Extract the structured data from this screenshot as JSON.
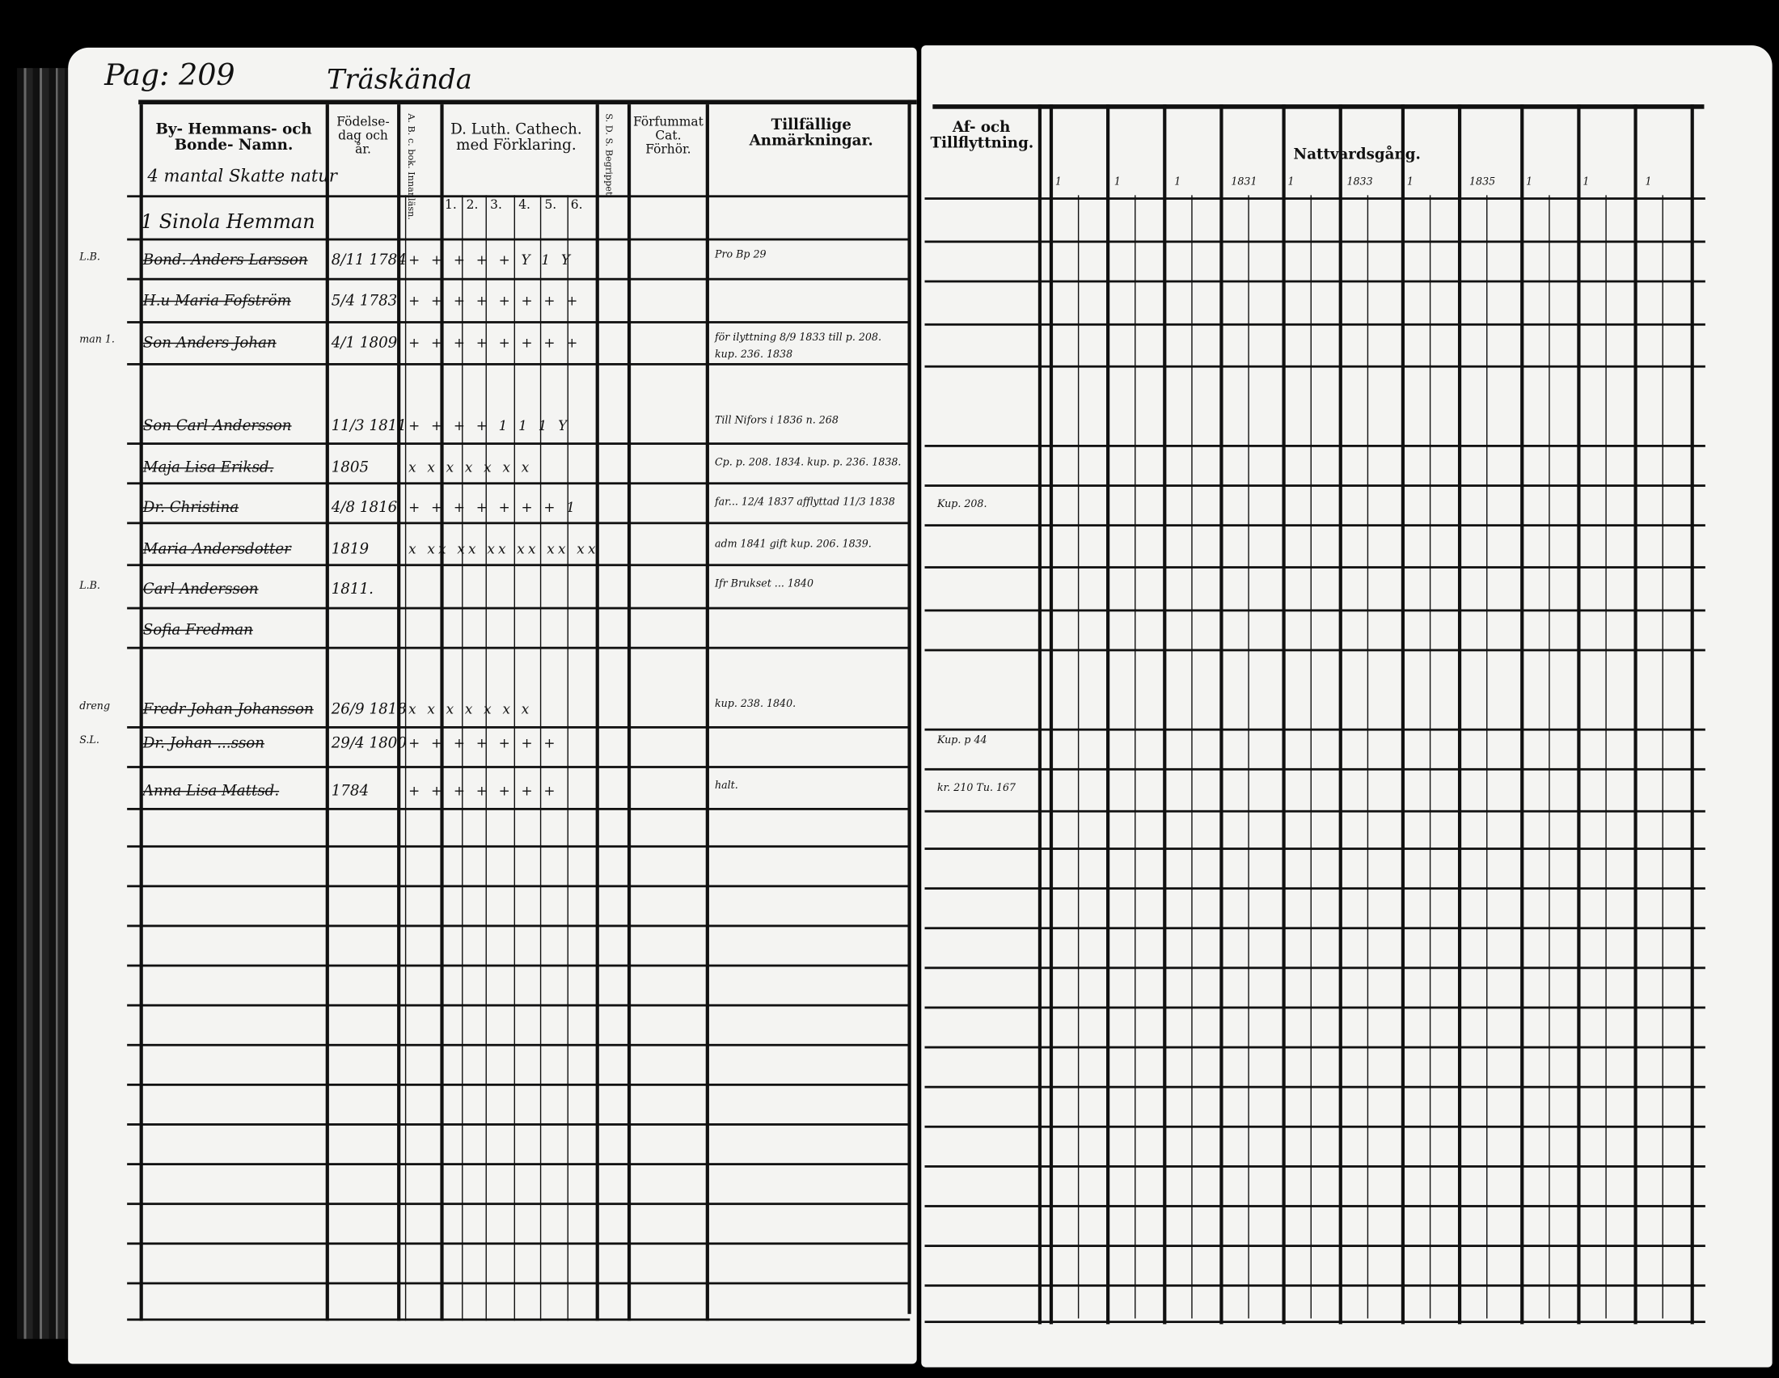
{
  "page_header": {
    "page_label": "Pag: 209",
    "place": "Träskända"
  },
  "left_headers": {
    "name_col": "By- Hemmans- och Bonde- Namn.",
    "name_sub": "4 mantal Skatte natur",
    "birth_col": "Födelse-dag och år.",
    "abc_col": "A. B. c. bok. Innanläsn.",
    "cathech_col": "D. Luth. Cathech. med Förklaring.",
    "cathech_nums": [
      "1.",
      "2.",
      "3.",
      "4.",
      "5.",
      "6."
    ],
    "sds_col": "S. D. S. Begrippet.",
    "forhor_col": "Förfummat Cat. Förhör.",
    "remarks_col": "Tillfällige Anmärkningar."
  },
  "right_headers": {
    "move_col": "Af- och Tillflyttning.",
    "communion_col": "Nattvardsgång.",
    "year_labels": [
      "1",
      "1",
      "1",
      "1831",
      "1",
      "1833",
      "1",
      "1835",
      "1",
      "1",
      "1"
    ]
  },
  "farm_heading": "1 Sinola Hemman",
  "rows": [
    {
      "mark": "L.B.",
      "name": "Bond. Anders Larsson",
      "birth": "8/11 1784",
      "marks": "+ + + + + Y 1 Y",
      "note": "Pro Bp 29",
      "move": ""
    },
    {
      "mark": "",
      "name": "H.u Maria Fofström",
      "birth": "5/4 1783",
      "marks": "+ + + + + + + +",
      "note": "",
      "move": ""
    },
    {
      "mark": "man 1.",
      "name": "Son Anders Johan",
      "birth": "4/1 1809",
      "marks": "+ + + + + + + +",
      "note": "för ilyttning 8/9 1833 till p. 208. kup. 236. 1838",
      "move": ""
    },
    {
      "mark": "",
      "name": "Son Carl Andersson",
      "birth": "11/3 1811",
      "marks": "+ + + + 1 1 1 Y",
      "note": "Till Nifors i 1836 n. 268",
      "move": ""
    },
    {
      "mark": "",
      "name": "Maja Lisa Eriksd.",
      "birth": "1805",
      "marks": "x x x x x x x",
      "note": "Cp. p. 208. 1834. kup. p. 236. 1838.",
      "move": ""
    },
    {
      "mark": "",
      "name": "Dr. Christina",
      "birth": "4/8 1816",
      "marks": "+ + + + + + + 1",
      "note": "far... 12/4 1837 afflyttad 11/3 1838",
      "move": "Kup. 208."
    },
    {
      "mark": "",
      "name": "Maria Andersdotter",
      "birth": "1819",
      "marks": "x xx xx xx xx xx xx",
      "note": "adm 1841 gift kup. 206. 1839.",
      "move": ""
    },
    {
      "mark": "L.B.",
      "name": "Carl Andersson",
      "birth": "1811.",
      "marks": "",
      "note": "Ifr Brukset ... 1840",
      "move": ""
    },
    {
      "mark": "",
      "name": "Sofia Fredman",
      "birth": "",
      "marks": "",
      "note": "",
      "move": ""
    },
    {
      "mark": "dreng",
      "name": "Fredr Johan Johansson",
      "birth": "26/9 1818",
      "marks": "x x x x x x x",
      "note": "kup. 238. 1840.",
      "move": ""
    },
    {
      "mark": "S.L.",
      "name": "Dr. Johan ...sson",
      "birth": "29/4 1800",
      "marks": "+ + + + + + +",
      "note": "",
      "move": "Kup. p 44"
    },
    {
      "mark": "",
      "name": "Anna Lisa Mattsd.",
      "birth": "1784",
      "marks": "+ + + + + + +",
      "note": "halt.",
      "move": "kr. 210 Tu. 167"
    }
  ]
}
